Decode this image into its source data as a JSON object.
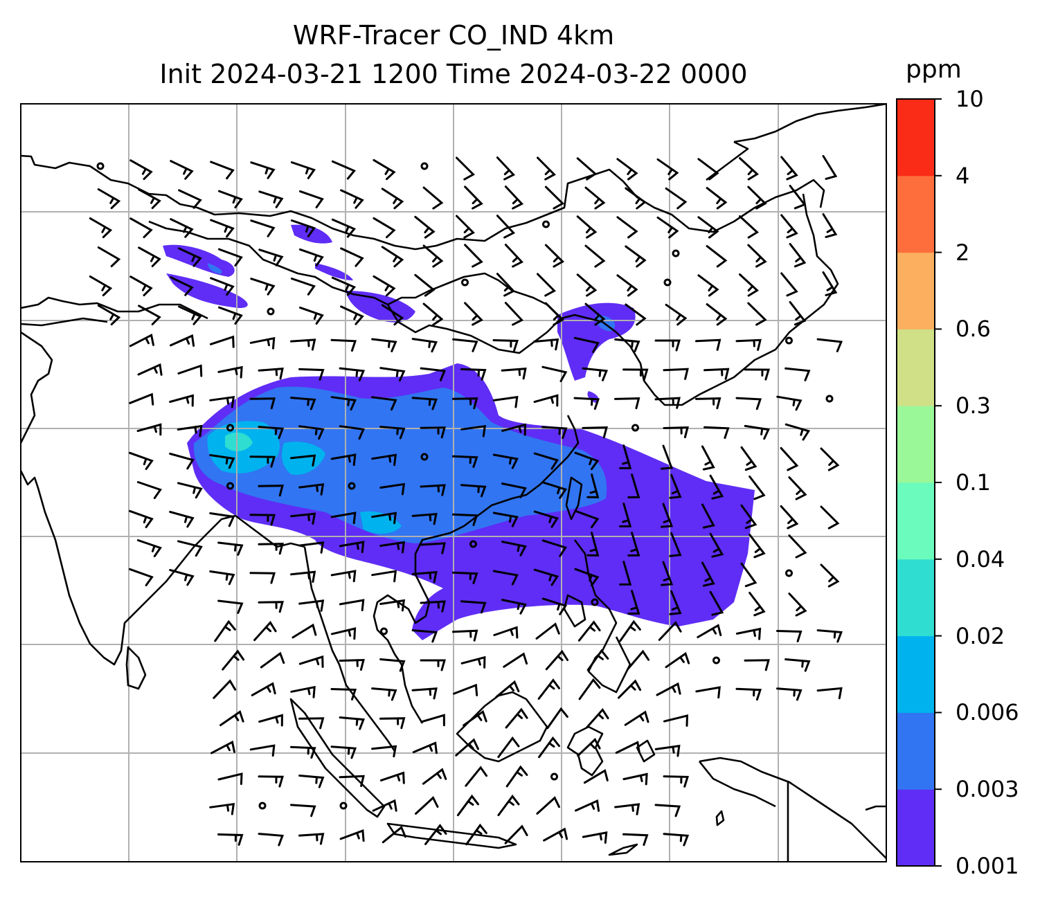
{
  "map": {
    "title_line1": "WRF-Tracer CO_IND 4km",
    "title_line2": "Init 2024-03-21 1200 Time 2024-03-22 0000",
    "colorbar": {
      "unit": "ppm",
      "levels": [
        "0.001",
        "0.003",
        "0.006",
        "0.02",
        "0.04",
        "0.1",
        "0.3",
        "0.6",
        "2",
        "4",
        "10"
      ],
      "colors": [
        "#5f2df5",
        "#3175f2",
        "#00b3ee",
        "#2fddd1",
        "#6bfbbd",
        "#9af899",
        "#cfe086",
        "#fbaf5f",
        "#fd6e3c",
        "#fa2b17"
      ]
    },
    "layers": [
      "gridlines",
      "coastlines",
      "tracer-concentration-fill",
      "wind-barbs"
    ],
    "accent_colors": {
      "frame": "#000000",
      "gridline": "#b0b0b0",
      "coastline": "#000000"
    }
  }
}
